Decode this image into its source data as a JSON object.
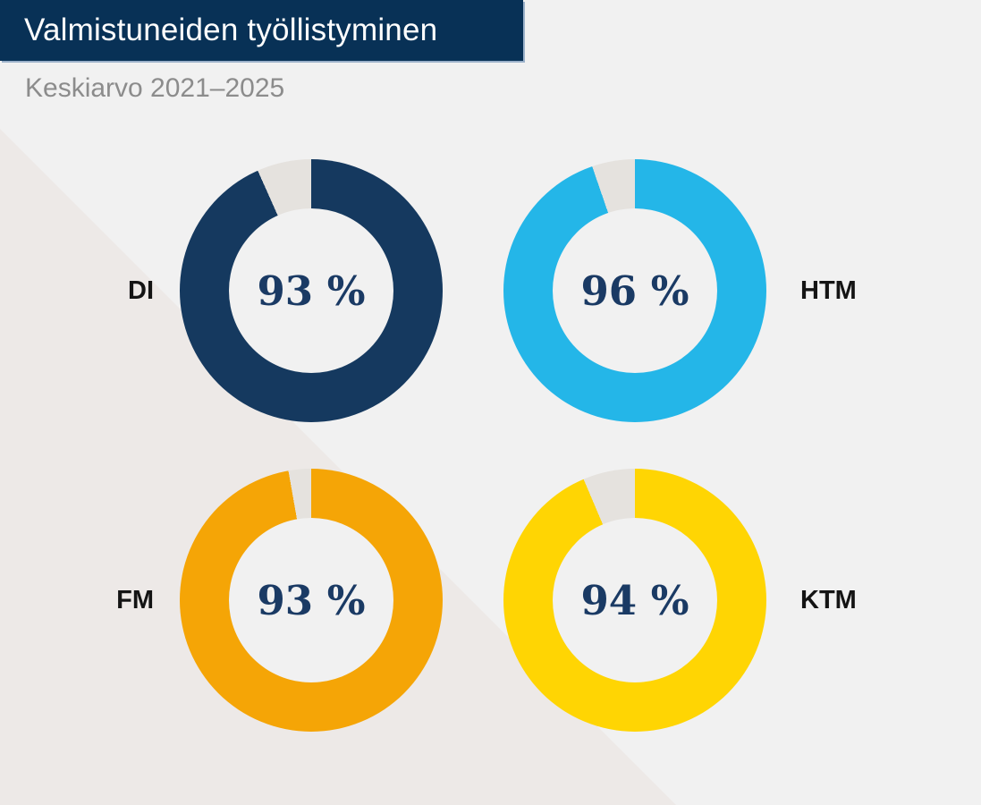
{
  "header": {
    "title": "Valmistuneiden työllistyminen",
    "subtitle": "Keskiarvo 2021–2025"
  },
  "colors": {
    "background": "#f1f1f1",
    "background_wedge": "#ede9e7",
    "title_bar": "#083156",
    "title_bar_edge": "#9bb1ca",
    "title_text": "#ffffff",
    "subtitle_text": "#8c8c8c",
    "percent_text": "#1a3a64",
    "label_text": "#141414",
    "remainder": "#e5e2de"
  },
  "chart_data": {
    "type": "pie",
    "variant": "donut",
    "title": "Valmistuneiden työllistyminen",
    "subtitle": "Keskiarvo 2021–2025",
    "unit": "%",
    "remainder_color": "#e5e2de",
    "series": [
      {
        "label": "DI",
        "value": 93,
        "display": "93 %",
        "color": "#15395f",
        "arc_gap_deg": 24,
        "label_side": "left"
      },
      {
        "label": "HTM",
        "value": 96,
        "display": "96 %",
        "color": "#24b6e8",
        "arc_gap_deg": 19,
        "label_side": "right"
      },
      {
        "label": "FM",
        "value": 93,
        "display": "93 %",
        "color": "#f5a506",
        "arc_gap_deg": 10,
        "label_side": "left"
      },
      {
        "label": "KTM",
        "value": 94,
        "display": "94 %",
        "color": "#ffd503",
        "arc_gap_deg": 23,
        "label_side": "right"
      }
    ],
    "notes": "Arc starts at 12 o'clock and sweeps clockwise; unfilled remainder ends at 12 o'clock."
  }
}
